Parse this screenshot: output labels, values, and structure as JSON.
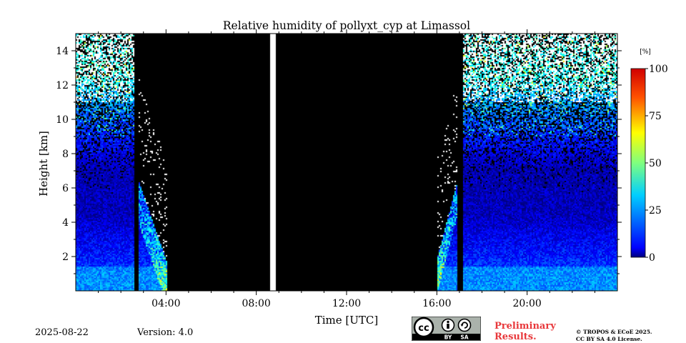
{
  "chart_data": {
    "type": "heatmap",
    "title": "Relative humidity of pollyxt_cyp at Limassol",
    "xlabel": "Time [UTC]",
    "ylabel": "Height [km]",
    "xlim": [
      0,
      24
    ],
    "ylim": [
      0,
      15
    ],
    "x_ticks": [
      {
        "value": 4,
        "label": "04:00"
      },
      {
        "value": 8,
        "label": "08:00"
      },
      {
        "value": 12,
        "label": "12:00"
      },
      {
        "value": 16,
        "label": "16:00"
      },
      {
        "value": 20,
        "label": "20:00"
      }
    ],
    "y_ticks": [
      {
        "value": 2,
        "label": "2"
      },
      {
        "value": 4,
        "label": "4"
      },
      {
        "value": 6,
        "label": "6"
      },
      {
        "value": 8,
        "label": "8"
      },
      {
        "value": 10,
        "label": "10"
      },
      {
        "value": 12,
        "label": "12"
      },
      {
        "value": 14,
        "label": "14"
      }
    ],
    "colorbar": {
      "unit": "[%]",
      "range": [
        0,
        100
      ],
      "ticks": [
        {
          "value": 0,
          "label": "0"
        },
        {
          "value": 25,
          "label": "25"
        },
        {
          "value": 50,
          "label": "50"
        },
        {
          "value": 75,
          "label": "75"
        },
        {
          "value": 100,
          "label": "100"
        }
      ]
    },
    "no_data_periods": [
      {
        "start": 2.55,
        "end": 2.75
      },
      {
        "start": 4.0,
        "end": 8.6
      },
      {
        "start": 8.85,
        "end": 16.0
      },
      {
        "start": 16.9,
        "end": 17.1
      }
    ],
    "missing_periods": [
      {
        "start": 8.6,
        "end": 8.85
      }
    ],
    "humidity_profile": [
      {
        "height_km": 1.0,
        "rh_percent": 20
      },
      {
        "height_km": 3.0,
        "rh_percent": 12
      },
      {
        "height_km": 4.5,
        "rh_percent": 6
      },
      {
        "height_km": 7.0,
        "rh_percent": 5
      },
      {
        "height_km": 10.5,
        "rh_percent": 25
      },
      {
        "height_km": 12.5,
        "rh_percent": 40
      }
    ]
  },
  "footer": {
    "date": "2025-08-22",
    "version": "Version: 4.0",
    "license_badge": {
      "cc": "cc",
      "by": "BY",
      "sa": "SA"
    },
    "preliminary": [
      "Preliminary",
      "Results."
    ],
    "copyright": [
      "© TROPOS & ECoE 2025.",
      "CC BY SA 4.0 License."
    ]
  }
}
